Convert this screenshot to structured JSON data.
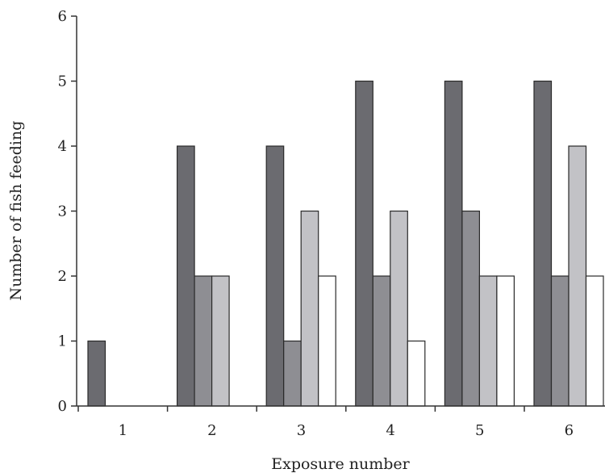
{
  "chart_data": {
    "type": "bar",
    "title": "",
    "xlabel": "Exposure number",
    "ylabel": "Number of fish feeding",
    "categories": [
      "1",
      "2",
      "3",
      "4",
      "5",
      "6"
    ],
    "series": [
      {
        "values": [
          1,
          4,
          4,
          5,
          5,
          5
        ],
        "color": "#6b6b70"
      },
      {
        "values": [
          0,
          2,
          1,
          2,
          3,
          2
        ],
        "color": "#8e8e93"
      },
      {
        "values": [
          0,
          2,
          3,
          3,
          2,
          4
        ],
        "color": "#c2c2c6"
      },
      {
        "values": [
          0,
          0,
          2,
          1,
          2,
          2
        ],
        "color": "#ffffff"
      }
    ],
    "yticks": [
      "0",
      "1",
      "2",
      "3",
      "4",
      "5",
      "6"
    ],
    "ylim": [
      0,
      6
    ],
    "grid": false,
    "legend": "none"
  }
}
